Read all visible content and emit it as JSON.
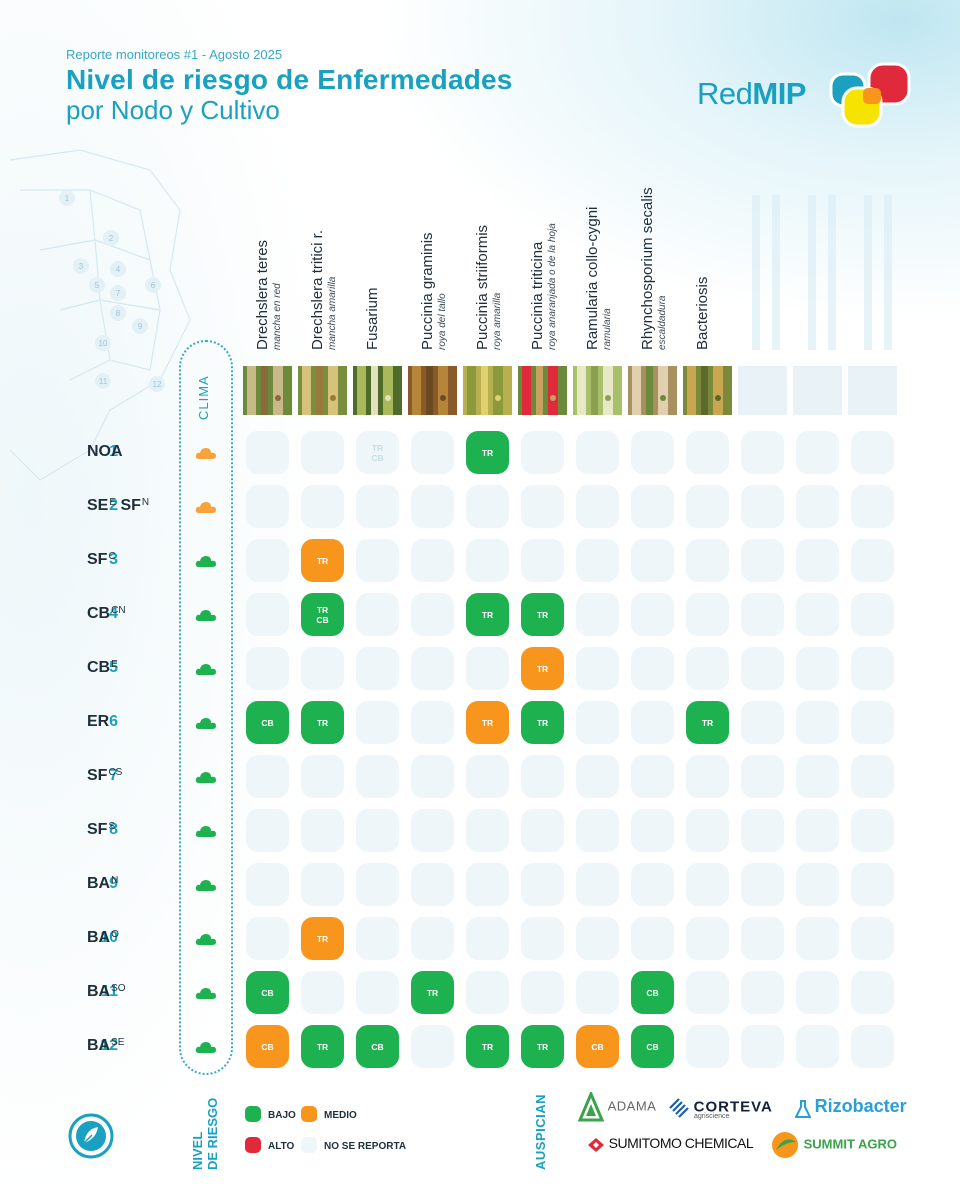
{
  "header": {
    "subtitle": "Reporte monitoreos #1 - Agosto 2025",
    "title_line1": "Nivel de riesgo de Enfermedades",
    "title_line2": "por Nodo y Cultivo"
  },
  "logo": {
    "text_regular": "Red",
    "text_bold": "MIP"
  },
  "clima_label": "CLIMA",
  "columns": [
    {
      "name": "Drechslera teres",
      "sci": "mancha en red"
    },
    {
      "name": "Drechslera tritici r.",
      "sci": "mancha amarilla"
    },
    {
      "name": "Fusarium",
      "sci": ""
    },
    {
      "name": "Puccinia graminis",
      "sci": "roya del tallo"
    },
    {
      "name": "Puccinia striiformis",
      "sci": "roya amarilla"
    },
    {
      "name": "Puccinia triticina",
      "sci": "roya anaranjada o de la hoja"
    },
    {
      "name": "Ramularia collo-cygni",
      "sci": "ramularia"
    },
    {
      "name": "Rhynchosporium secalis",
      "sci": "escaldadura"
    },
    {
      "name": "Bacteriosis",
      "sci": ""
    }
  ],
  "rows": [
    {
      "num": "1",
      "code": "NOA",
      "sup": "",
      "clima": "orange"
    },
    {
      "num": "2",
      "code": "SE",
      "sup": "E",
      "code2": "SF",
      "sup2": "N",
      "clima": "orange"
    },
    {
      "num": "3",
      "code": "SF",
      "sup": "C",
      "clima": "green"
    },
    {
      "num": "4",
      "code": "CB",
      "sup": "CN",
      "clima": "green"
    },
    {
      "num": "5",
      "code": "CB",
      "sup": "E",
      "clima": "green"
    },
    {
      "num": "6",
      "code": "ER",
      "sup": "",
      "clima": "green"
    },
    {
      "num": "7",
      "code": "SF",
      "sup": "CS",
      "clima": "green"
    },
    {
      "num": "8",
      "code": "SF",
      "sup": "S",
      "clima": "green"
    },
    {
      "num": "9",
      "code": "BA",
      "sup": "N",
      "clima": "green"
    },
    {
      "num": "10",
      "code": "BA",
      "sup": "O",
      "clima": "green"
    },
    {
      "num": "11",
      "code": "BA",
      "sup": "SO",
      "clima": "green"
    },
    {
      "num": "12",
      "code": "BA",
      "sup": "SE",
      "clima": "green"
    }
  ],
  "cells": [
    {
      "row": 0,
      "col": 2,
      "level": "faint",
      "text": "TR\nCB"
    },
    {
      "row": 0,
      "col": 4,
      "level": "bajo",
      "text": "TR"
    },
    {
      "row": 2,
      "col": 1,
      "level": "medio",
      "text": "TR"
    },
    {
      "row": 3,
      "col": 1,
      "level": "bajo",
      "text": "TR\nCB"
    },
    {
      "row": 3,
      "col": 4,
      "level": "bajo",
      "text": "TR"
    },
    {
      "row": 3,
      "col": 5,
      "level": "bajo",
      "text": "TR"
    },
    {
      "row": 4,
      "col": 5,
      "level": "medio",
      "text": "TR"
    },
    {
      "row": 5,
      "col": 0,
      "level": "bajo",
      "text": "CB"
    },
    {
      "row": 5,
      "col": 1,
      "level": "bajo",
      "text": "TR"
    },
    {
      "row": 5,
      "col": 4,
      "level": "medio",
      "text": "TR"
    },
    {
      "row": 5,
      "col": 5,
      "level": "bajo",
      "text": "TR"
    },
    {
      "row": 5,
      "col": 8,
      "level": "bajo",
      "text": "TR"
    },
    {
      "row": 9,
      "col": 1,
      "level": "medio",
      "text": "TR"
    },
    {
      "row": 10,
      "col": 0,
      "level": "bajo",
      "text": "CB"
    },
    {
      "row": 10,
      "col": 3,
      "level": "bajo",
      "text": "TR"
    },
    {
      "row": 10,
      "col": 7,
      "level": "bajo",
      "text": "CB"
    },
    {
      "row": 11,
      "col": 0,
      "level": "medio",
      "text": "CB"
    },
    {
      "row": 11,
      "col": 1,
      "level": "bajo",
      "text": "TR"
    },
    {
      "row": 11,
      "col": 2,
      "level": "bajo",
      "text": "CB"
    },
    {
      "row": 11,
      "col": 4,
      "level": "bajo",
      "text": "TR"
    },
    {
      "row": 11,
      "col": 5,
      "level": "bajo",
      "text": "TR"
    },
    {
      "row": 11,
      "col": 6,
      "level": "medio",
      "text": "CB"
    },
    {
      "row": 11,
      "col": 7,
      "level": "bajo",
      "text": "CB"
    }
  ],
  "map_nodes": [
    "1",
    "2",
    "3",
    "4",
    "5",
    "6",
    "7",
    "8",
    "9",
    "10",
    "11",
    "12"
  ],
  "legend": {
    "title_line1": "NIVEL",
    "title_line2": "DE RIESGO",
    "bajo": "BAJO",
    "medio": "MEDIO",
    "alto": "ALTO",
    "no_reporta": "NO SE REPORTA"
  },
  "sponsors": {
    "label": "AUSPICIAN",
    "adama": "ADAMA",
    "corteva": "CORTEVA",
    "corteva_sub": "agriscience",
    "rizobacter": "Rizobacter",
    "sumitomo": "SUMITOMO CHEMICAL",
    "summit": "SUMMIT AGRO"
  },
  "colors": {
    "accent": "#1aa0c0",
    "bajo": "#1eb14f",
    "medio": "#f7951d",
    "alto": "#e02a3b",
    "no_reporta": "#eef6f9"
  }
}
